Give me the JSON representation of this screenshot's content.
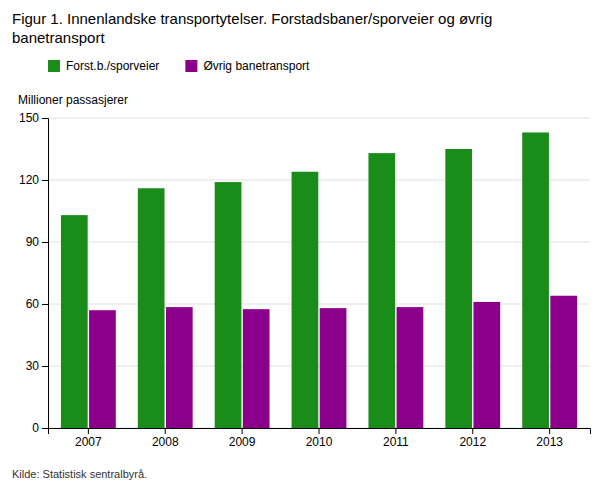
{
  "chart_data": {
    "type": "bar",
    "title": "Figur 1. Innenlandske transportytelser. Forstadsbaner/sporveier og øvrig\nbanetransport",
    "y_label": "Millioner passasjerer",
    "source": "Kilde: Statistisk sentralbyrå.",
    "categories": [
      "2007",
      "2008",
      "2009",
      "2010",
      "2011",
      "2012",
      "2013"
    ],
    "series": [
      {
        "name": "Forst.b./sporveier",
        "color": "#1a8c1a",
        "values": [
          103,
          116,
          119,
          124,
          133,
          135,
          143
        ]
      },
      {
        "name": "Øvrig banetransport",
        "color": "#8b008b",
        "values": [
          57,
          58.5,
          57.5,
          58,
          58.5,
          61,
          64
        ]
      }
    ],
    "ylim": [
      0,
      150
    ],
    "yticks": [
      0,
      30,
      60,
      90,
      120,
      150
    ],
    "grid": true,
    "legend": "top"
  }
}
